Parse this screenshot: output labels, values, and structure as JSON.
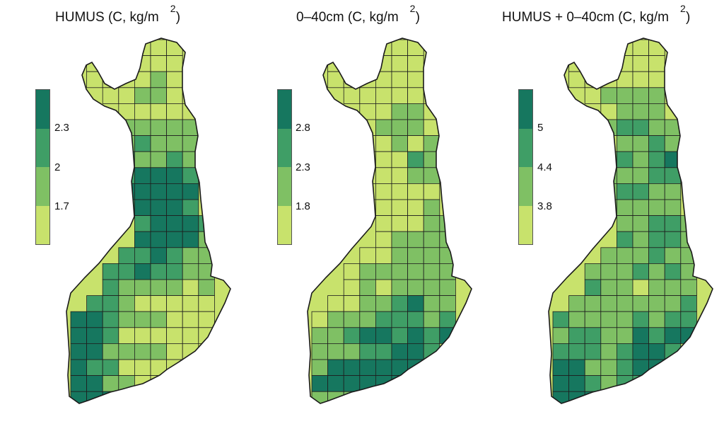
{
  "palette": [
    "#c8e26c",
    "#7fc064",
    "#3f9e66",
    "#16775f"
  ],
  "panels": [
    {
      "id": "humus",
      "title_main": "HUMUS (C, kg/m",
      "title_sup": "2",
      "title_close": ")",
      "legend_ticks": [
        "2.3",
        "2",
        "1.7"
      ],
      "grid": [
        "...xxxx..",
        ".x.xxxx..",
        ".xaaabaa.",
        "..aabbaa.",
        "...aaaaa.",
        "...bbbbb.",
        "...bcbbb.",
        "...cbbcb.",
        "...cdddc.",
        "...ddddd.",
        "...cdddc.",
        "....cdddc",
        "....ddddb",
        "...ccdcbb",
        "..ccdccbb",
        "..cbbbbab",
        ".ccbaaaaa",
        "ddcbbbaaa",
        "ddcaaaaaa",
        "ddbbbbaa.",
        "dccaaaaa.",
        "ddbbaaab.",
        "dddbbba..",
        "ddddddd..",
        "ddddd...."
      ]
    },
    {
      "id": "depth",
      "title_main": "0–40cm (C, kg/m",
      "title_sup": "2",
      "title_close": ")",
      "legend_ticks": [
        "2.8",
        "2.3",
        "1.8"
      ],
      "grid": [
        "...xxxx..",
        ".x.xxxx..",
        ".xaaaaaa.",
        "..aaaaaa.",
        "...aabba.",
        "...abbba.",
        "...aabab.",
        "...aaacb.",
        "...aaabb.",
        "...aaaaa.",
        "...aaaab.",
        "....aaabb",
        "....abbbb",
        "...aabbbb",
        "..abbbbbb",
        "..ababbbb",
        ".aabbcdbb",
        "abbbcccbc",
        "bbcddcdcd",
        "bbbccddc.",
        "bddddddd.",
        "dddddddb.",
        "bbbcabb..",
        "bbbbabb..",
        "bbbbb...."
      ]
    },
    {
      "id": "total",
      "title_main": "HUMUS + 0–40cm (C, kg/m",
      "title_sup": "2",
      "title_close": ")",
      "legend_ticks": [
        "5",
        "4.4",
        "3.8"
      ],
      "grid": [
        "...xxxx..",
        ".x.xxxx..",
        ".xaaaaaa.",
        "..abbbba.",
        "...abbba.",
        "...bccbb.",
        "...abbcb.",
        "...bcbcd.",
        "...bbbcc.",
        "...bccbb.",
        "...bbbbb.",
        "....bbccb",
        "....cbccb",
        "...bbbcbb",
        "..bbbcbcb",
        "..cbbabbb",
        ".bbbbbbbc",
        "cbbbbcbcc",
        "bccbbdcdd",
        "cccbcddc.",
        "ddbbcddd.",
        "ddcbccdb.",
        "dddbbbb..",
        "dddbbbb..",
        "ddddc...."
      ]
    }
  ]
}
